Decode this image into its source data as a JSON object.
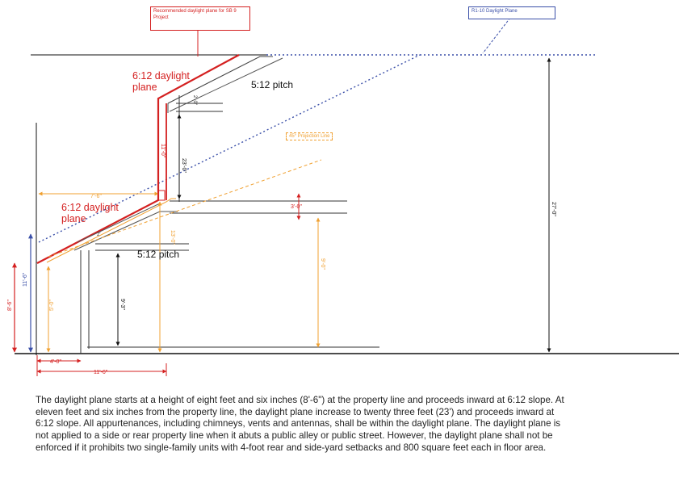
{
  "callouts": {
    "recommended": "Recommended daylight plane for SB 9 Project",
    "r1_10": "R1-10 Daylight Plane"
  },
  "labels": {
    "upper_daylight_plane": "6:12 daylight plane",
    "lower_daylight_plane": "6:12 daylight plane",
    "upper_pitch": "5:12 pitch",
    "lower_pitch": "5:12 pitch",
    "projection_line": "45° Projection Line"
  },
  "dimensions": {
    "total_height": "27'-0\"",
    "height_8_6": "8'-6\"",
    "height_11_6": "11'-6\"",
    "height_5_0": "5'-0\"",
    "height_9_0": "9'-0\"",
    "height_11_0": "11'-0\"",
    "height_13_0": "13'-0\"",
    "height_9_3": "9'-3\"",
    "height_23_0": "23'-0\"",
    "height_2_0": "2'-0\"",
    "height_3_0": "3'-0\"",
    "run_4_0": "4'-0\"",
    "run_11_6": "11'-6\"",
    "run_7_6": "7'-6\"",
    "dim_2": "2'"
  },
  "colors": {
    "red": "#d42020",
    "orange": "#f0a030",
    "blue": "#3a4fa8",
    "black": "#111111"
  },
  "caption": "The daylight plane starts at a height of eight feet and six inches (8'-6\") at the property line and proceeds inward at 6:12 slope. At eleven feet and six inches from the property line, the daylight plane increase to twenty three feet (23') and proceeds inward at 6:12 slope. All appurtenances, including chimneys, vents and antennas, shall be within the daylight plane. The daylight plane is not applied to a side or rear property line when it abuts a public alley or public street. However, the daylight plane shall not be enforced if it prohibits two single-family units with 4-foot rear and side-yard setbacks and 800 square feet each in floor area."
}
